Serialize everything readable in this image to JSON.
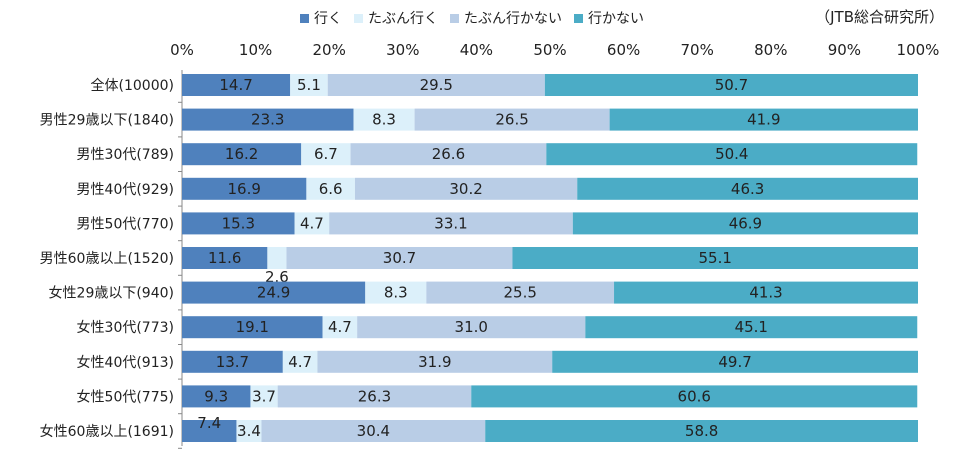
{
  "source_note": "（JTB総合研究所）",
  "chart_data": {
    "type": "bar",
    "orientation": "horizontal",
    "stacked": true,
    "percent_stacked": true,
    "xlim": [
      0,
      100
    ],
    "x_ticks": [
      "0%",
      "10%",
      "20%",
      "30%",
      "40%",
      "50%",
      "60%",
      "70%",
      "80%",
      "90%",
      "100%"
    ],
    "legend_position": "top",
    "grid": false,
    "categories": [
      "全体(10000)",
      "男性29歳以下(1840)",
      "男性30代(789)",
      "男性40代(929)",
      "男性50代(770)",
      "男性60歳以上(1520)",
      "女性29歳以下(940)",
      "女性30代(773)",
      "女性40代(913)",
      "女性50代(775)",
      "女性60歳以上(1691)"
    ],
    "series": [
      {
        "name": "行く",
        "color": "#4f81bd",
        "values": [
          14.7,
          23.3,
          16.2,
          16.9,
          15.3,
          11.6,
          24.9,
          19.1,
          13.7,
          9.3,
          7.4
        ],
        "labels": [
          "14.7",
          "23.3",
          "16.2",
          "16.9",
          "15.3",
          "11.6",
          "24.9",
          "19.1",
          "13.7",
          "9.3",
          "7.4"
        ]
      },
      {
        "name": "たぶん行く",
        "color": "#dcf0fa",
        "values": [
          5.1,
          8.3,
          6.7,
          6.6,
          4.7,
          2.6,
          8.3,
          4.7,
          4.7,
          3.7,
          3.4
        ],
        "labels": [
          "5.1",
          "8.3",
          "6.7",
          "6.6",
          "4.7",
          "2.6",
          "8.3",
          "4.7",
          "4.7",
          "3.7",
          "3.4"
        ]
      },
      {
        "name": "たぶん行かない",
        "color": "#b9cde6",
        "values": [
          29.5,
          26.5,
          26.6,
          30.2,
          33.1,
          30.7,
          25.5,
          31.0,
          31.9,
          26.3,
          30.4
        ],
        "labels": [
          "29.5",
          "26.5",
          "26.6",
          "30.2",
          "33.1",
          "30.7",
          "25.5",
          "31.0",
          "31.9",
          "26.3",
          "30.4"
        ]
      },
      {
        "name": "行かない",
        "color": "#4bacc6",
        "values": [
          50.7,
          41.9,
          50.4,
          46.3,
          46.9,
          55.1,
          41.3,
          45.1,
          49.7,
          60.6,
          58.8
        ],
        "labels": [
          "50.7",
          "41.9",
          "50.4",
          "46.3",
          "46.9",
          "55.1",
          "41.3",
          "45.1",
          "49.7",
          "60.6",
          "58.8"
        ]
      }
    ]
  }
}
